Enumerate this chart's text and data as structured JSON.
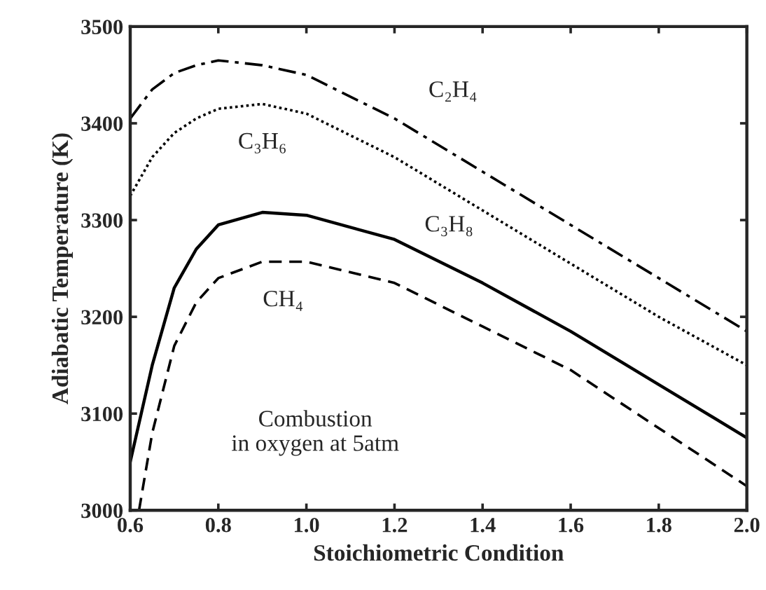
{
  "chart_data": {
    "type": "line",
    "xlabel": "Stoichiometric Condition",
    "ylabel": "Adiabatic Temperature (K)",
    "x": [
      0.6,
      0.65,
      0.7,
      0.75,
      0.8,
      0.9,
      1.0,
      1.2,
      1.4,
      1.6,
      1.8,
      2.0
    ],
    "series": [
      {
        "name": "C₂H₄",
        "color": "#000000",
        "line_style": "dashdot",
        "values": [
          3405,
          3435,
          3452,
          3460,
          3465,
          3460,
          3450,
          3405,
          3350,
          3295,
          3240,
          3185
        ]
      },
      {
        "name": "C₃H₆",
        "color": "#000000",
        "line_style": "dotted",
        "values": [
          3325,
          3365,
          3390,
          3405,
          3415,
          3420,
          3410,
          3365,
          3310,
          3255,
          3200,
          3150
        ]
      },
      {
        "name": "C₃H₈",
        "color": "#000000",
        "line_style": "solid",
        "values": [
          3050,
          3150,
          3230,
          3270,
          3295,
          3308,
          3305,
          3280,
          3235,
          3185,
          3130,
          3075
        ]
      },
      {
        "name": "CH₄",
        "color": "#000000",
        "line_style": "dashed",
        "x": [
          0.62,
          0.65,
          0.7,
          0.75,
          0.8,
          0.9,
          1.0,
          1.2,
          1.4,
          1.6,
          1.8,
          2.0
        ],
        "values": [
          3000,
          3080,
          3170,
          3215,
          3240,
          3257,
          3257,
          3235,
          3190,
          3145,
          3085,
          3025
        ]
      }
    ],
    "annotations": [
      "Combustion\nin oxygen at 5atm"
    ],
    "xlim": [
      0.6,
      2.0
    ],
    "xticks": [
      {
        "value": 0.6,
        "label": "0.6"
      },
      {
        "value": 0.8,
        "label": "0.8"
      },
      {
        "value": 1.0,
        "label": "1.0"
      },
      {
        "value": 1.2,
        "label": "1.2"
      },
      {
        "value": 1.4,
        "label": "1.4"
      },
      {
        "value": 1.6,
        "label": "1.6"
      },
      {
        "value": 1.8,
        "label": "1.8"
      },
      {
        "value": 2.0,
        "label": "2.0"
      }
    ],
    "ylim": [
      3000,
      3500
    ],
    "yticks": [
      3000,
      3100,
      3200,
      3300,
      3400,
      3500
    ],
    "grid": false
  }
}
